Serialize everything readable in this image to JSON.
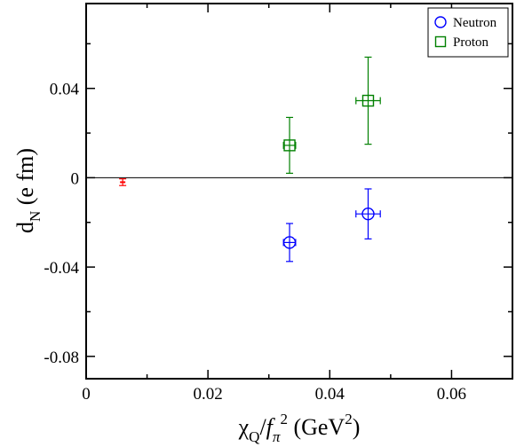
{
  "chart_data": {
    "type": "scatter",
    "title": "",
    "xlabel": {
      "main": "χ",
      "sub": "Q",
      "div": "/",
      "f": "f",
      "fsub": "π",
      "sup": "2",
      "unit": " (GeV",
      "unitsup": "2",
      "close": ")"
    },
    "ylabel": {
      "main": "d",
      "sub": "N",
      "unit": " (e fm)"
    },
    "xlim": [
      0,
      0.07
    ],
    "ylim": [
      -0.09,
      0.078
    ],
    "xticks": [
      0,
      0.02,
      0.04,
      0.06
    ],
    "xtick_labels": [
      "0",
      "0.02",
      "0.04",
      "0.06"
    ],
    "yticks": [
      -0.08,
      -0.04,
      0,
      0.04
    ],
    "ytick_labels": [
      "-0.08",
      "-0.04",
      "0",
      "0.04"
    ],
    "zero_line": 0,
    "grid": false,
    "legend_position": "top-right",
    "series": [
      {
        "name": "Neutron",
        "marker": "circle",
        "color": "#0000ff",
        "points": [
          {
            "x": 0.0334,
            "y": -0.029,
            "xerr": 0.001,
            "yerr": 0.0085
          },
          {
            "x": 0.0463,
            "y": -0.0162,
            "xerr": 0.002,
            "yerr": 0.0112
          }
        ]
      },
      {
        "name": "Proton",
        "marker": "square",
        "color": "#008000",
        "points": [
          {
            "x": 0.0334,
            "y": 0.0145,
            "xerr": 0.001,
            "yerr": 0.0125
          },
          {
            "x": 0.0463,
            "y": 0.0345,
            "xerr": 0.002,
            "yerr": 0.0195
          }
        ]
      },
      {
        "marker": "errorbar-only",
        "color": "#ff0000",
        "points": [
          {
            "x": 0.006,
            "y": -0.002,
            "xerr": 0,
            "yerr": 0.0015
          }
        ]
      }
    ]
  }
}
